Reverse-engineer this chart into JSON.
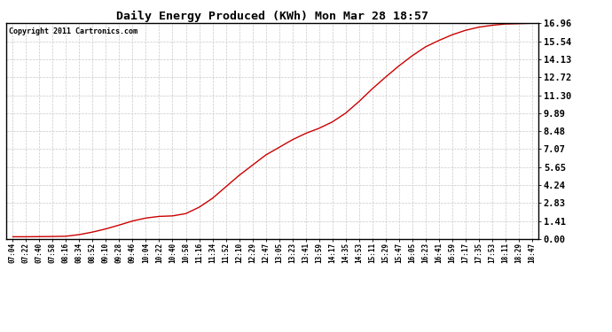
{
  "title": "Daily Energy Produced (KWh) Mon Mar 28 18:57",
  "copyright_text": "Copyright 2011 Cartronics.com",
  "line_color": "#cc0000",
  "background_color": "#ffffff",
  "plot_bg_color": "#ffffff",
  "grid_color": "#c8c8c8",
  "ytick_labels": [
    "0.00",
    "1.41",
    "2.83",
    "4.24",
    "5.65",
    "7.07",
    "8.48",
    "9.89",
    "11.30",
    "12.72",
    "14.13",
    "15.54",
    "16.96"
  ],
  "ytick_values": [
    0.0,
    1.41,
    2.83,
    4.24,
    5.65,
    7.07,
    8.48,
    9.89,
    11.3,
    12.72,
    14.13,
    15.54,
    16.96
  ],
  "ymax": 16.96,
  "xtick_labels": [
    "07:04",
    "07:22",
    "07:40",
    "07:58",
    "08:16",
    "08:34",
    "08:52",
    "09:10",
    "09:28",
    "09:46",
    "10:04",
    "10:22",
    "10:40",
    "10:58",
    "11:16",
    "11:34",
    "11:52",
    "12:10",
    "12:29",
    "12:47",
    "13:05",
    "13:23",
    "13:41",
    "13:59",
    "14:17",
    "14:35",
    "14:53",
    "15:11",
    "15:29",
    "15:47",
    "16:05",
    "16:23",
    "16:41",
    "16:59",
    "17:17",
    "17:35",
    "17:53",
    "18:11",
    "18:29",
    "18:47"
  ],
  "anchors_x": [
    0,
    1,
    2,
    3,
    4,
    5,
    6,
    7,
    8,
    9,
    10,
    11,
    12,
    13,
    14,
    15,
    16,
    17,
    18,
    19,
    20,
    21,
    22,
    23,
    24,
    25,
    26,
    27,
    28,
    29,
    30,
    31,
    32,
    33,
    34,
    35,
    36,
    37,
    38,
    39
  ],
  "anchors_y": [
    0.18,
    0.18,
    0.19,
    0.2,
    0.22,
    0.35,
    0.55,
    0.8,
    1.1,
    1.42,
    1.65,
    1.78,
    1.82,
    2.0,
    2.5,
    3.2,
    4.1,
    5.0,
    5.8,
    6.6,
    7.2,
    7.8,
    8.3,
    8.7,
    9.2,
    9.89,
    10.8,
    11.8,
    12.72,
    13.6,
    14.4,
    15.1,
    15.6,
    16.05,
    16.4,
    16.65,
    16.8,
    16.9,
    16.93,
    16.96
  ]
}
